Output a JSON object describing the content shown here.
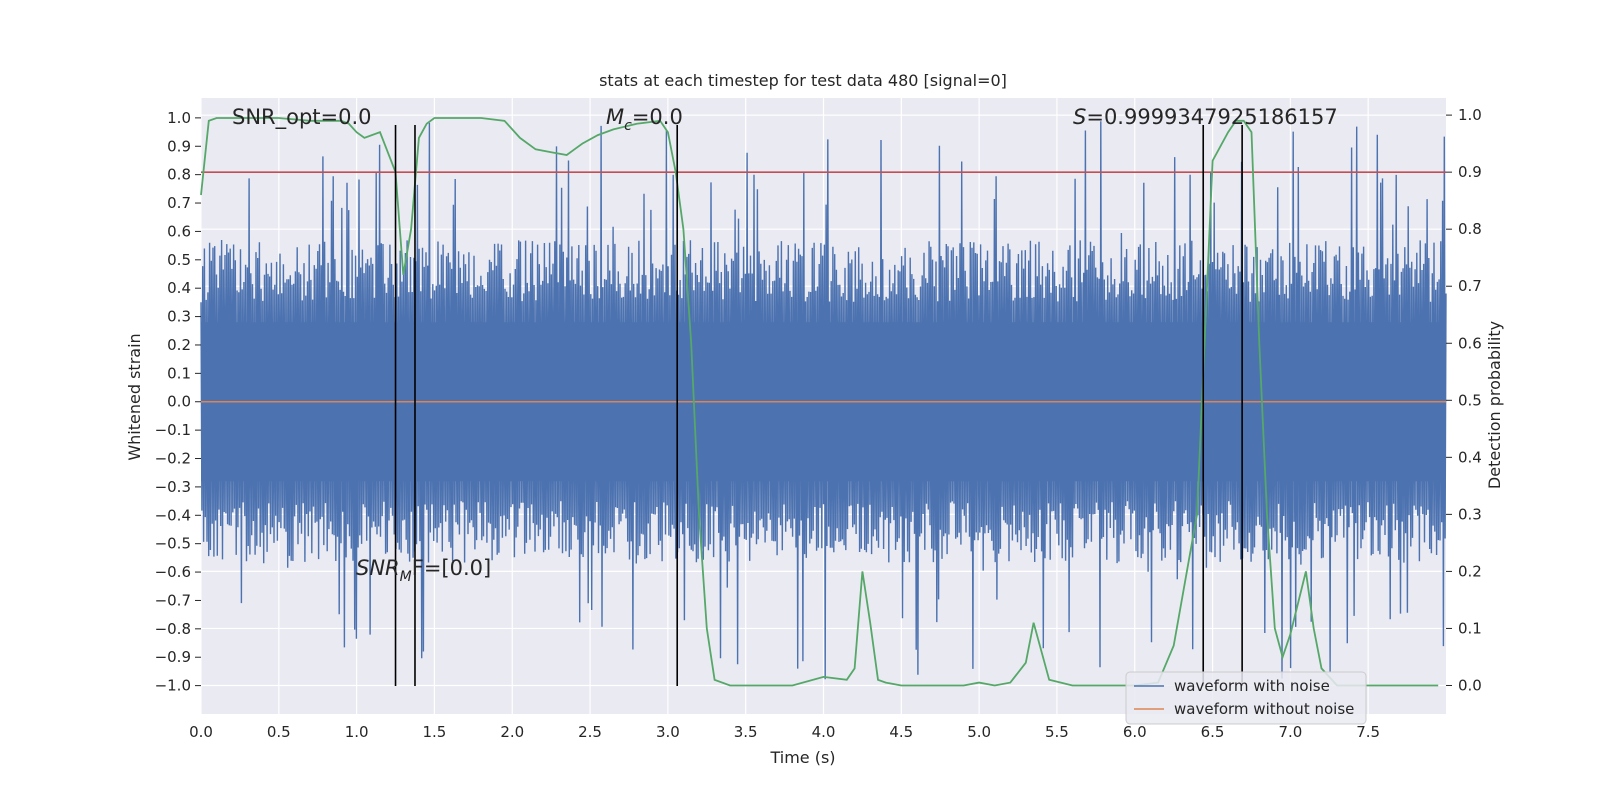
{
  "chart_data": {
    "type": "line",
    "title": "stats at each timestep for test data 480 [signal=0]",
    "xlabel": "Time (s)",
    "ylabel_left": "Whitened strain",
    "ylabel_right": "Detection probability",
    "xlim": [
      0.0,
      8.0
    ],
    "ylim_left": [
      -1.1,
      1.07
    ],
    "ylim_right": [
      -0.05,
      1.03
    ],
    "xticks": [
      "0.0",
      "0.5",
      "1.0",
      "1.5",
      "2.0",
      "2.5",
      "3.0",
      "3.5",
      "4.0",
      "4.5",
      "5.0",
      "5.5",
      "6.0",
      "6.5",
      "7.0",
      "7.5"
    ],
    "yticks_left": [
      "1.0",
      "0.9",
      "0.8",
      "0.7",
      "0.6",
      "0.5",
      "0.4",
      "0.3",
      "0.2",
      "0.1",
      "0.0",
      "-0.1",
      "-0.2",
      "-0.3",
      "-0.4",
      "-0.5",
      "-0.6",
      "-0.7",
      "-0.8",
      "-0.9",
      "-1.0"
    ],
    "yticks_right": [
      "1.0",
      "0.9",
      "0.8",
      "0.7",
      "0.6",
      "0.5",
      "0.4",
      "0.3",
      "0.2",
      "0.1",
      "0.0"
    ],
    "grid": true,
    "legend_position": "lower-right",
    "series": [
      {
        "name": "waveform with noise",
        "color": "#4c72b0",
        "axis": "left",
        "style": "dense noise, amplitude up to ~1.0"
      },
      {
        "name": "waveform without noise",
        "color": "#dd8452",
        "axis": "left",
        "y_const": 0.0
      },
      {
        "color": "#55a868",
        "axis": "right",
        "x": [
          0.0,
          0.05,
          0.1,
          0.3,
          0.5,
          0.7,
          0.9,
          0.95,
          1.0,
          1.05,
          1.15,
          1.25,
          1.3,
          1.35,
          1.4,
          1.45,
          1.5,
          1.6,
          1.8,
          1.95,
          2.05,
          2.15,
          2.25,
          2.35,
          2.4,
          2.45,
          2.55,
          2.65,
          2.8,
          2.95,
          3.0,
          3.05,
          3.1,
          3.15,
          3.2,
          3.25,
          3.3,
          3.4,
          3.6,
          3.8,
          4.0,
          4.15,
          4.2,
          4.25,
          4.3,
          4.35,
          4.4,
          4.5,
          4.7,
          4.9,
          5.0,
          5.1,
          5.2,
          5.3,
          5.35,
          5.45,
          5.6,
          5.8,
          6.0,
          6.15,
          6.25,
          6.4,
          6.5,
          6.6,
          6.65,
          6.7,
          6.75,
          6.8,
          6.85,
          6.9,
          6.95,
          7.0,
          7.1,
          7.15,
          7.2,
          7.3,
          7.5,
          7.7,
          7.95
        ],
        "y": [
          0.86,
          0.99,
          0.995,
          0.995,
          0.995,
          0.99,
          0.99,
          0.985,
          0.97,
          0.96,
          0.97,
          0.9,
          0.72,
          0.8,
          0.96,
          0.985,
          0.995,
          0.995,
          0.995,
          0.99,
          0.96,
          0.94,
          0.935,
          0.93,
          0.94,
          0.95,
          0.965,
          0.975,
          0.985,
          0.99,
          0.97,
          0.9,
          0.8,
          0.6,
          0.3,
          0.1,
          0.01,
          0.0,
          0.0,
          0.0,
          0.015,
          0.01,
          0.03,
          0.2,
          0.11,
          0.01,
          0.005,
          0.0,
          0.0,
          0.0,
          0.005,
          0.0,
          0.005,
          0.04,
          0.11,
          0.01,
          0.0,
          0.0,
          0.0,
          0.005,
          0.07,
          0.3,
          0.92,
          0.97,
          0.99,
          0.99,
          0.97,
          0.6,
          0.3,
          0.1,
          0.05,
          0.09,
          0.2,
          0.1,
          0.03,
          0.0,
          0.0,
          0.0,
          0.0
        ]
      },
      {
        "color": "#c44e52",
        "axis": "right",
        "y_const": 0.9
      }
    ],
    "vlines_x": [
      1.25,
      1.375,
      3.06,
      6.44,
      6.69
    ],
    "annotations": [
      {
        "text": "SNR_opt=0.0"
      },
      {
        "text": "M_c=0.0",
        "main": "M",
        "sub": "c",
        "rest": "=0.0"
      },
      {
        "text": "S=0.9999347925186157",
        "main": "S",
        "rest": "=0.9999347925186157"
      },
      {
        "text": "SNR_MF=[0.0]",
        "main": "SNR",
        "sub": "M",
        "rest": "F=[0.0]"
      }
    ]
  }
}
